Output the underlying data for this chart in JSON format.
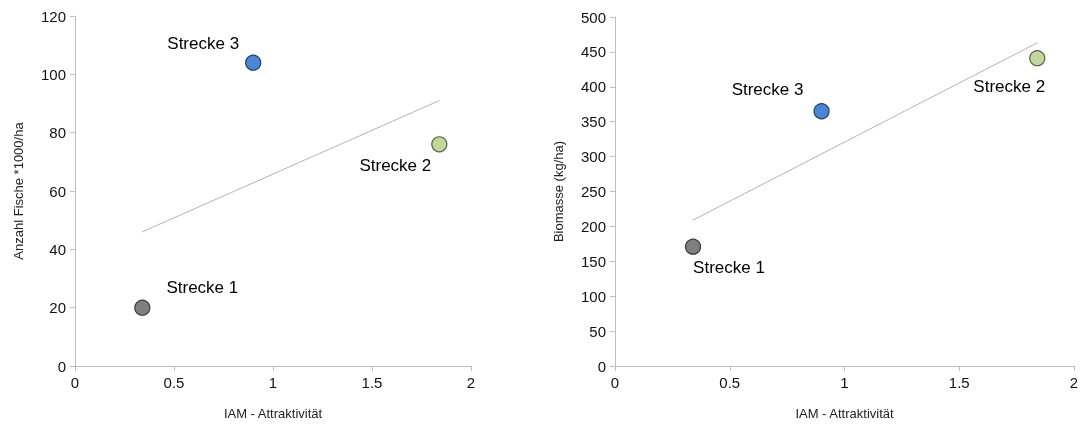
{
  "chart_data": [
    {
      "type": "scatter",
      "xlabel": "IAM - Attraktivität",
      "ylabel": "Anzahl Fische *1000/ha",
      "xlim": [
        0,
        2
      ],
      "xticks": [
        0,
        0.5,
        1,
        1.5,
        2
      ],
      "ylim": [
        0,
        120
      ],
      "yticks": [
        0,
        20,
        40,
        60,
        80,
        100,
        120
      ],
      "grid": false,
      "legend": false,
      "marker": "circle",
      "series": [
        {
          "name": "Strecke 1",
          "color": "#7f7f7f",
          "x": [
            0.34
          ],
          "values": [
            20
          ]
        },
        {
          "name": "Strecke 2",
          "color": "#c3d69b",
          "x": [
            1.84
          ],
          "values": [
            76
          ]
        },
        {
          "name": "Strecke 3",
          "color": "#4a86d8",
          "x": [
            0.9
          ],
          "values": [
            104
          ]
        },
        {
          "type": "line",
          "color": "#a6a6a6",
          "line_style": "dotted",
          "marker": "none",
          "x": [
            0.34,
            1.84
          ],
          "values": [
            46,
            91
          ]
        }
      ]
    },
    {
      "type": "scatter",
      "xlabel": "IAM - Attraktivität",
      "ylabel": "Biomasse (kg/ha)",
      "xlim": [
        0,
        2
      ],
      "xticks": [
        0,
        0.5,
        1,
        1.5,
        2
      ],
      "ylim": [
        0,
        500
      ],
      "yticks": [
        0,
        50,
        100,
        150,
        200,
        250,
        300,
        350,
        400,
        450,
        500
      ],
      "grid": false,
      "legend": false,
      "marker": "circle",
      "series": [
        {
          "name": "Strecke 1",
          "color": "#7f7f7f",
          "x": [
            0.34
          ],
          "values": [
            171
          ]
        },
        {
          "name": "Strecke 2",
          "color": "#c3d69b",
          "x": [
            1.84
          ],
          "values": [
            441
          ]
        },
        {
          "name": "Strecke 3",
          "color": "#4a86d8",
          "x": [
            0.9
          ],
          "values": [
            365
          ]
        },
        {
          "type": "line",
          "color": "#a6a6a6",
          "line_style": "dotted",
          "marker": "none",
          "x": [
            0.34,
            1.84
          ],
          "values": [
            209,
            463
          ]
        }
      ]
    }
  ]
}
